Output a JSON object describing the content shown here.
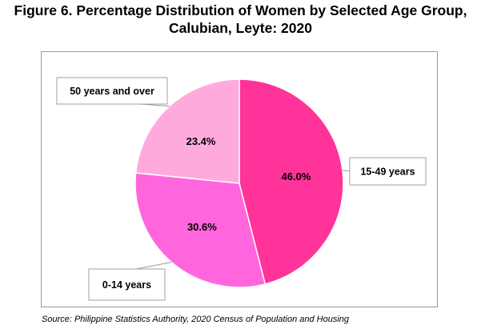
{
  "title_line1": "Figure 6. Percentage Distribution of Women by Selected Age Group,",
  "title_line2": "Calubian, Leyte: 2020",
  "source": "Source: Philippine Statistics Authority, 2020 Census of Population and Housing",
  "chart_data": {
    "type": "pie",
    "title": "Figure 6. Percentage Distribution of Women by Selected Age Group, Calubian, Leyte: 2020",
    "slices": [
      {
        "label": "15-49 years",
        "value": 46.0,
        "display": "46.0%",
        "color": "#ff3399"
      },
      {
        "label": "0-14 years",
        "value": 30.6,
        "display": "30.6%",
        "color": "#ff66dd"
      },
      {
        "label": "50 years and over",
        "value": 23.4,
        "display": "23.4%",
        "color": "#ffaadd"
      }
    ],
    "start_angle": "12 o'clock",
    "direction": "clockwise",
    "legend": "none (callout labels)"
  }
}
